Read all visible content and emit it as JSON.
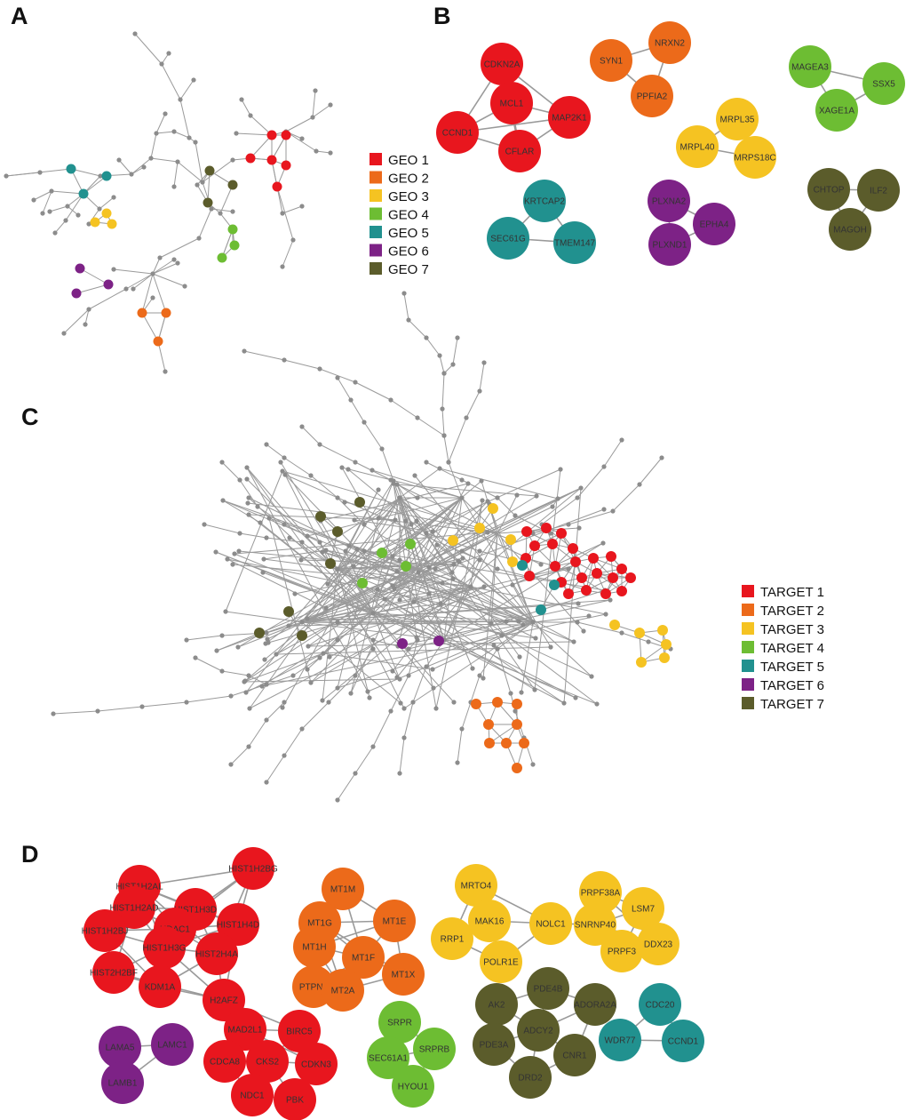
{
  "panels": {
    "A": "A",
    "B": "B",
    "C": "C",
    "D": "D"
  },
  "colors": {
    "red": "#e8161e",
    "orange": "#ec6a1a",
    "yellow": "#f5c322",
    "green": "#6dbd33",
    "teal": "#21918f",
    "purple": "#7d2286",
    "olive": "#5b5c2b",
    "gray": "#8c8c8c"
  },
  "legend_geo": [
    {
      "label": "GEO 1",
      "color": "red"
    },
    {
      "label": "GEO 2",
      "color": "orange"
    },
    {
      "label": "GEO 3",
      "color": "yellow"
    },
    {
      "label": "GEO 4",
      "color": "green"
    },
    {
      "label": "GEO 5",
      "color": "teal"
    },
    {
      "label": "GEO 6",
      "color": "purple"
    },
    {
      "label": "GEO 7",
      "color": "olive"
    }
  ],
  "legend_target": [
    {
      "label": "TARGET 1",
      "color": "red"
    },
    {
      "label": "TARGET 2",
      "color": "orange"
    },
    {
      "label": "TARGET 3",
      "color": "yellow"
    },
    {
      "label": "TARGET 4",
      "color": "green"
    },
    {
      "label": "TARGET 5",
      "color": "teal"
    },
    {
      "label": "TARGET 6",
      "color": "purple"
    },
    {
      "label": "TARGET 7",
      "color": "olive"
    }
  ],
  "modules_b": [
    {
      "color": "red",
      "genes": [
        "CDKN2A",
        "MCL1",
        "MAP2K1",
        "CCND1",
        "CFLAR"
      ]
    },
    {
      "color": "orange",
      "genes": [
        "SYN1",
        "NRXN2",
        "PPFIA2"
      ]
    },
    {
      "color": "yellow",
      "genes": [
        "MRPL35",
        "MRPL40",
        "MRPS18C"
      ]
    },
    {
      "color": "green",
      "genes": [
        "MAGEA3",
        "SSX5",
        "XAGE1A"
      ]
    },
    {
      "color": "teal",
      "genes": [
        "KRTCAP2",
        "SEC61G",
        "TMEM147"
      ]
    },
    {
      "color": "purple",
      "genes": [
        "PLXNA2",
        "EPHA4",
        "PLXND1"
      ]
    },
    {
      "color": "olive",
      "genes": [
        "CHTOP",
        "ILF2",
        "MAGOH"
      ]
    }
  ],
  "modules_d": [
    {
      "color": "red",
      "genes": [
        "HIST1H2AL",
        "HIST1H2BG",
        "HIST1H2AD",
        "HIST1H3D",
        "HDAC1",
        "HIST1H4D",
        "HIST1H2BJ",
        "HIST1H3G",
        "HIST2H4A",
        "HIST2H2BF",
        "KDM1A",
        "H2AFZ",
        "MAD2L1",
        "BIRC5",
        "CDCA8",
        "CKS2",
        "CDKN3",
        "NDC1",
        "PBK"
      ]
    },
    {
      "color": "orange",
      "genes": [
        "MT1M",
        "MT1G",
        "MT1E",
        "MT1H",
        "MT1F",
        "PTPN1",
        "MT1X",
        "MT2A"
      ]
    },
    {
      "color": "yellow",
      "genes": [
        "MRTO4",
        "MAK16",
        "NOLC1",
        "RRP1",
        "POLR1E",
        "PRPF38A",
        "LSM7",
        "SNRNP40",
        "DDX23",
        "PRPF3"
      ]
    },
    {
      "color": "purple",
      "genes": [
        "LAMA5",
        "LAMC1",
        "LAMB1"
      ]
    },
    {
      "color": "green",
      "genes": [
        "SRPR",
        "SEC61A1",
        "SRPRB",
        "HYOU1"
      ]
    },
    {
      "color": "olive",
      "genes": [
        "PDE4B",
        "AK2",
        "ADORA2A",
        "ADCY2",
        "PDE3A",
        "CNR1",
        "DRD2"
      ]
    },
    {
      "color": "teal",
      "genes": [
        "CDC20",
        "WDR77",
        "CCND1"
      ]
    }
  ]
}
